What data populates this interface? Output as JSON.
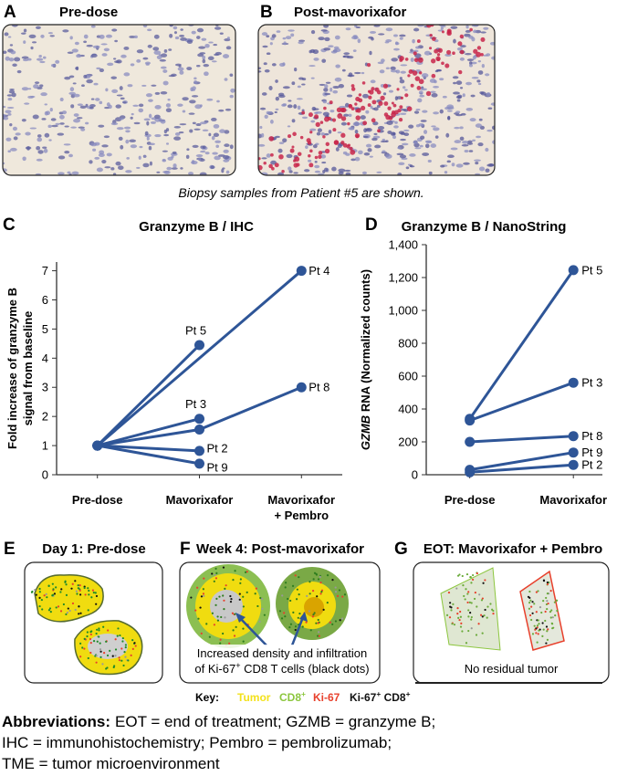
{
  "figure": {
    "images": [
      {
        "letter": "A",
        "title": "Pre-dose"
      },
      {
        "letter": "B",
        "title": "Post-mavorixafor"
      }
    ],
    "caption": "Biopsy samples from Patient #5 are shown.",
    "spatial": [
      {
        "letter": "E",
        "title": "Day 1: Pre-dose"
      },
      {
        "letter": "F",
        "title": "Week 4: Post-mavorixafor",
        "annotation": [
          [
            "Increased density and infiltration"
          ],
          [
            "of Ki-67",
            {
              "sup": "+"
            },
            " CD8 T cells (black dots)"
          ]
        ]
      },
      {
        "letter": "G",
        "title": "EOT: Mavorixafor + Pembro",
        "annotation": [
          [
            "No residual tumor"
          ]
        ]
      }
    ],
    "key_label": "Key:",
    "key": [
      {
        "parts": [
          "Tumor"
        ],
        "color": "#f3e21b"
      },
      {
        "parts": [
          "CD8",
          {
            "sup": "+"
          }
        ],
        "color": "#8cc63e"
      },
      {
        "parts": [
          "Ki-67"
        ],
        "color": "#e8402c"
      },
      {
        "parts": [
          "Ki-67",
          {
            "sup": "+"
          },
          " CD8",
          {
            "sup": "+"
          }
        ],
        "color": "#111111"
      }
    ],
    "abbreviations": {
      "heading": "Abbreviations:",
      "lines": [
        "EOT = end of treatment; GZMB = granzyme B;",
        "IHC = immunohistochemistry; Pembro = pembrolizumab;",
        "TME = tumor microenvironment"
      ]
    }
  },
  "chart_data": [
    {
      "type": "line",
      "letter": "C",
      "title": "Granzyme B / IHC",
      "ylabel": [
        [
          "Fold increase of granzyme B"
        ],
        [
          "signal from baseline"
        ]
      ],
      "xlim": [
        -0.4,
        2.4
      ],
      "xticks": [
        {
          "value": 0,
          "label": "Pre-dose"
        },
        {
          "value": 1,
          "label": "Mavorixafor"
        },
        {
          "value": 2,
          "label": [
            "Mavorixafor",
            "+ Pembro"
          ]
        }
      ],
      "ylim": [
        0,
        7.3
      ],
      "yticks": [
        0,
        1,
        2,
        3,
        4,
        5,
        6,
        7
      ],
      "color": "#2e5597",
      "series": [
        {
          "name": "Pt 4",
          "x": [
            0,
            2
          ],
          "values": [
            1,
            7
          ]
        },
        {
          "name": "Pt 5",
          "x": [
            0,
            1
          ],
          "values": [
            1,
            4.45
          ]
        },
        {
          "name": "Pt 3",
          "x": [
            0,
            1
          ],
          "values": [
            1,
            1.92
          ]
        },
        {
          "name": "Pt 8",
          "x": [
            0,
            1,
            2
          ],
          "values": [
            1,
            1.55,
            3
          ]
        },
        {
          "name": "Pt 2",
          "x": [
            0,
            1
          ],
          "values": [
            1,
            0.82
          ]
        },
        {
          "name": "Pt 9",
          "x": [
            0,
            1
          ],
          "values": [
            1,
            0.38
          ]
        }
      ]
    },
    {
      "type": "line",
      "letter": "D",
      "title": "Granzyme B / NanoString",
      "ylabel": [
        [
          {
            "it": "GZMB"
          },
          " RNA (Normalized counts)"
        ]
      ],
      "xlim": [
        -0.42,
        1.28
      ],
      "xticks": [
        {
          "value": 0,
          "label": "Pre-dose"
        },
        {
          "value": 1,
          "label": "Mavorixafor"
        }
      ],
      "ylim": [
        0,
        1400
      ],
      "yticks": [
        0,
        200,
        400,
        600,
        800,
        {
          "value": 1000,
          "label": "1,000"
        },
        {
          "value": 1200,
          "label": "1,200"
        },
        {
          "value": 1400,
          "label": "1,400"
        }
      ],
      "color": "#2e5597",
      "series": [
        {
          "name": "Pt 5",
          "x": [
            0,
            1
          ],
          "values": [
            340,
            1245
          ]
        },
        {
          "name": "Pt 3",
          "x": [
            0,
            1
          ],
          "values": [
            330,
            560
          ]
        },
        {
          "name": "Pt 8",
          "x": [
            0,
            1
          ],
          "values": [
            200,
            235
          ]
        },
        {
          "name": "Pt 9",
          "x": [
            0,
            1
          ],
          "values": [
            30,
            135
          ]
        },
        {
          "name": "Pt 2",
          "x": [
            0,
            1
          ],
          "values": [
            15,
            60
          ]
        }
      ]
    }
  ]
}
